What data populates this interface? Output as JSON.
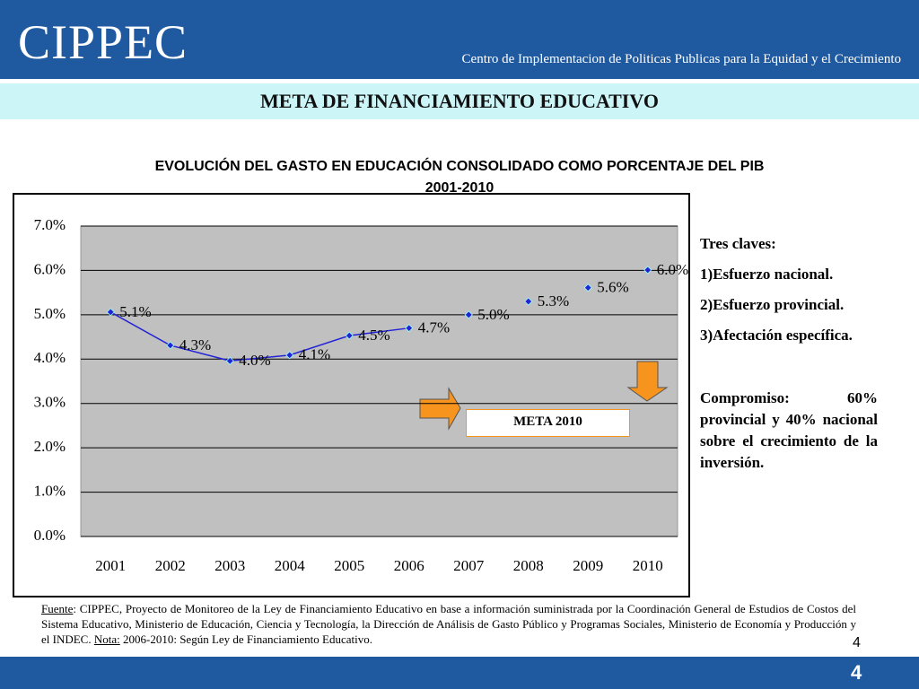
{
  "header": {
    "logo": "CIPPEC",
    "tagline": "Centro de Implementacion de Politicas Publicas para la Equidad y el Crecimiento",
    "title": "META DE FINANCIAMIENTO EDUCATIVO"
  },
  "chart_data": {
    "type": "line",
    "title": "EVOLUCIÓN DEL GASTO EN EDUCACIÓN CONSOLIDADO COMO PORCENTAJE DEL PIB",
    "subtitle": "2001-2010",
    "categories": [
      "2001",
      "2002",
      "2003",
      "2004",
      "2005",
      "2006",
      "2007",
      "2008",
      "2009",
      "2010"
    ],
    "series": [
      {
        "color": "#2323d6",
        "show_line": true,
        "values": [
          5.06,
          4.31,
          3.96,
          4.09,
          4.53,
          4.7,
          null,
          null,
          null,
          null
        ],
        "value_labels": [
          "5.1%",
          "4.3%",
          "4.0%",
          "4.1%",
          "4.5%",
          "4.7%",
          null,
          null,
          null,
          null
        ]
      },
      {
        "color": "#2323d6",
        "show_line": false,
        "values": [
          null,
          null,
          null,
          null,
          null,
          null,
          5.0,
          5.3,
          5.61,
          6.01
        ],
        "value_labels": [
          null,
          null,
          null,
          null,
          null,
          null,
          "5.0%",
          "5.3%",
          "5.6%",
          "6.0%"
        ]
      }
    ],
    "ylim": [
      0,
      7
    ],
    "yticks": [
      {
        "value": 0,
        "label": "0.0%"
      },
      {
        "value": 1,
        "label": "1.0%"
      },
      {
        "value": 2,
        "label": "2.0%"
      },
      {
        "value": 3,
        "label": "3.0%"
      },
      {
        "value": 4,
        "label": "4.0%"
      },
      {
        "value": 5,
        "label": "5.0%"
      },
      {
        "value": 6,
        "label": "6.0%"
      },
      {
        "value": 7,
        "label": "7.0%"
      }
    ],
    "grid": true,
    "annotations": [
      {
        "text": "META 2010"
      }
    ]
  },
  "sidebar": {
    "heading": "Tres claves:",
    "items": [
      "1)Esfuerzo nacional.",
      "2)Esfuerzo provincial.",
      "3)Afectación específica."
    ],
    "commitment": "Compromiso: 60% provincial y 40% nacional sobre el crecimiento de la inversión."
  },
  "footnote": {
    "source_label": "Fuente",
    "source_text": ": CIPPEC, Proyecto de Monitoreo de la Ley de Financiamiento Educativo en base a información suministrada por la Coordinación General de Estudios de Costos del Sistema Educativo, Ministerio de Educación, Ciencia y Tecnología, la Dirección de Análisis de Gasto Público y Programas Sociales, Ministerio de Economía y Producción y el INDEC. ",
    "note_label": "Nota:",
    "note_text": " 2006-2010: Según Ley de Financiamiento Educativo."
  },
  "page_number": "4"
}
